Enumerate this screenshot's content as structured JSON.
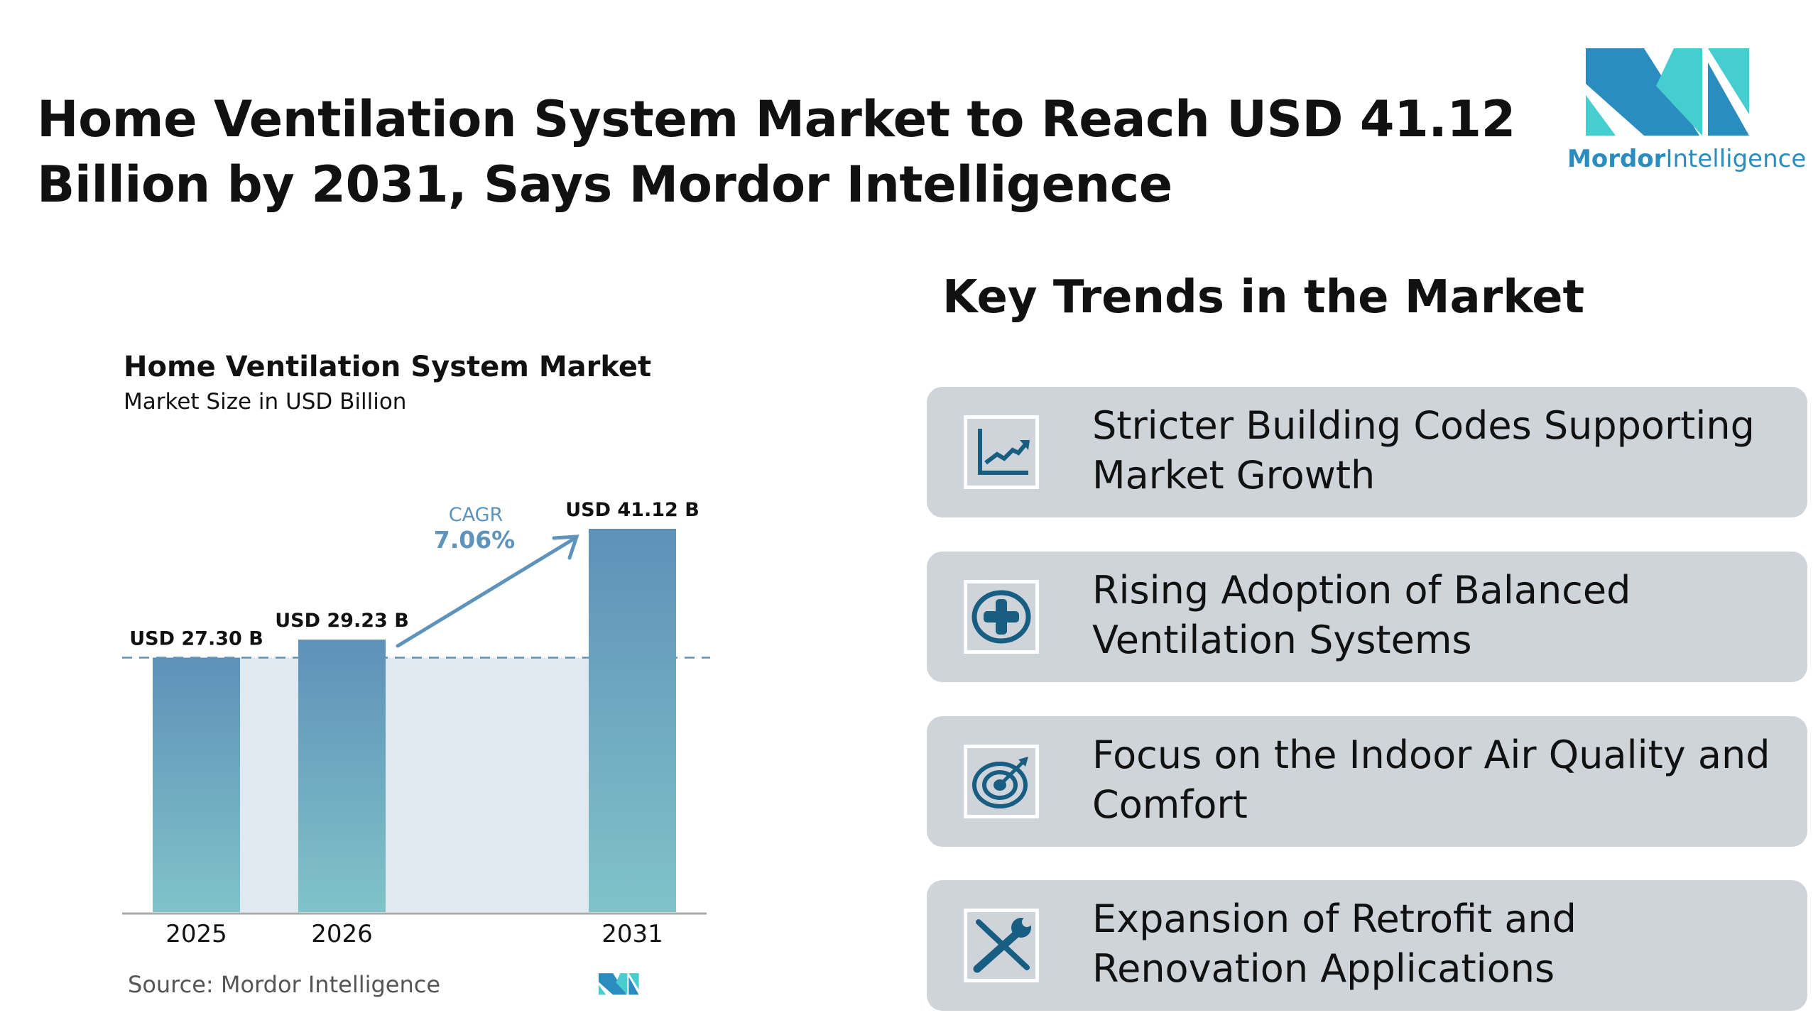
{
  "header": {
    "title": "Home Ventilation System Market to Reach USD 41.12 Billion by 2031, Says Mordor Intelligence"
  },
  "logo": {
    "word1": "Mordor",
    "word2": "Intelligence",
    "colors": {
      "dark": "#2b8cc0",
      "light": "#46cdd0"
    }
  },
  "trends": {
    "heading": "Key Trends in the Market",
    "items": [
      {
        "label": "Stricter Building Codes Supporting Market Growth",
        "icon": "line-chart-icon"
      },
      {
        "label": "Rising Adoption of Balanced Ventilation Systems",
        "icon": "plus-circle-icon"
      },
      {
        "label": "Focus on the Indoor Air Quality and Comfort",
        "icon": "target-icon"
      },
      {
        "label": "Expansion of Retrofit and Renovation Applications",
        "icon": "tools-icon"
      }
    ],
    "card_color": "#cfd4da",
    "icon_color": "#175e82"
  },
  "chart_data": {
    "type": "bar",
    "title": "Home Ventilation System Market",
    "subtitle": "Market Size in USD Billion",
    "categories": [
      "2025",
      "2026",
      "2031"
    ],
    "values": [
      27.3,
      29.23,
      41.12
    ],
    "data_labels": [
      "USD 27.30 B",
      "USD 29.23 B",
      "USD 41.12 B"
    ],
    "ylim": [
      0,
      41.12
    ],
    "grid": false,
    "annotation": {
      "label": "CAGR",
      "value": "7.06%"
    },
    "colors": {
      "bar_top": "#5e91b8",
      "bar_bottom": "#80c3c9",
      "shade": "#e0e9f0",
      "accent": "#5e93bb"
    },
    "source": "Source:  Mordor Intelligence"
  }
}
